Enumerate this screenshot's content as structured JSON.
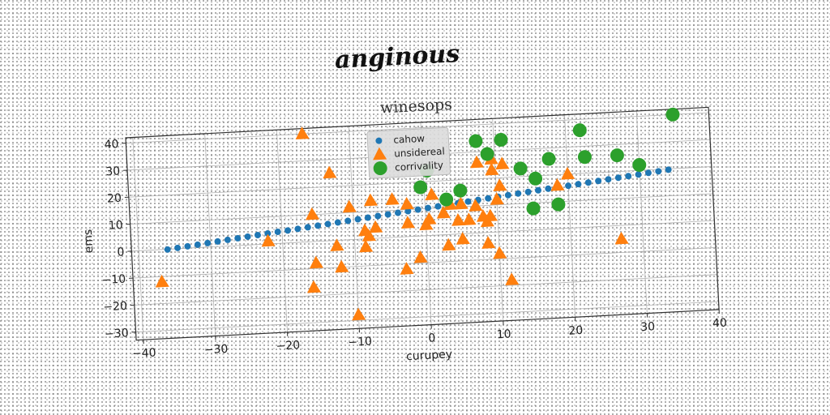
{
  "chart_data": {
    "type": "scatter",
    "suptitle": "anginous",
    "title": "winesops",
    "xlabel": "curupey",
    "ylabel": "ems",
    "xlim": [
      -41,
      40
    ],
    "ylim": [
      -33,
      42
    ],
    "xticks": [
      -40,
      -30,
      -20,
      -10,
      0,
      10,
      20,
      30,
      40
    ],
    "yticks": [
      -30,
      -20,
      -10,
      0,
      10,
      20,
      30,
      40
    ],
    "grid": true,
    "legend_position": "top-center",
    "series": [
      {
        "name": "cahow",
        "marker": "circle-small",
        "color": "#1f77b4",
        "x": [
          -36,
          -34.6,
          -33.2,
          -31.8,
          -30.4,
          -29,
          -27.6,
          -26.2,
          -24.8,
          -23.4,
          -22,
          -20.6,
          -19.2,
          -17.8,
          -16.4,
          -15,
          -13.6,
          -12.2,
          -10.8,
          -9.4,
          -8,
          -6.6,
          -5.2,
          -3.8,
          -2.4,
          -1,
          0.4,
          1.8,
          3.2,
          4.6,
          6,
          7.4,
          8.8,
          10.2,
          11.6,
          13,
          14.4,
          15.8,
          17.2,
          18.6,
          20,
          21.4,
          22.8,
          24.2,
          25.6,
          27,
          28.4,
          29.8,
          31.2,
          32.6,
          34
        ],
        "y": [
          -0.1,
          0.3,
          0.7,
          1.1,
          1.5,
          1.9,
          2.3,
          2.7,
          3.1,
          3.5,
          3.9,
          4.3,
          4.6,
          5,
          5.4,
          5.8,
          6.2,
          6.6,
          7,
          7.4,
          7.8,
          8.2,
          8.6,
          9,
          9.4,
          9.8,
          10.2,
          10.6,
          11,
          11.4,
          11.8,
          12.2,
          12.6,
          13,
          13.4,
          13.8,
          14.2,
          14.6,
          15,
          15.4,
          15.7,
          16.1,
          16.5,
          16.9,
          17.3,
          17.7,
          18.1,
          18.5,
          18.9,
          19.3,
          19.7
        ]
      },
      {
        "name": "unsidereal",
        "marker": "triangle",
        "color": "#ff7f0e",
        "x": [
          -37,
          -16.5,
          -15.5,
          -16,
          -15.7,
          -13,
          -12.5,
          -12,
          -10.5,
          -8.5,
          -8.5,
          -8,
          -7.5,
          -7,
          -4.5,
          -3,
          -2.5,
          -2.5,
          -1,
          0,
          0.5,
          1,
          2.5,
          3,
          3.5,
          4.5,
          5,
          5,
          6,
          7,
          7.5,
          8,
          8.5,
          8.5,
          9,
          9.5,
          9.5,
          10,
          10,
          10.5,
          11,
          11.5,
          18.5,
          20,
          27,
          -22,
          -10
        ],
        "y": [
          -12,
          40,
          -8,
          -17,
          10,
          25,
          -2,
          -10,
          12,
          3,
          -3,
          1,
          14,
          4,
          14,
          -12,
          12,
          5,
          -8,
          4,
          6,
          15,
          8,
          -4,
          11,
          5,
          -2,
          11,
          5,
          10,
          26,
          6,
          4,
          -4,
          6,
          27,
          23,
          -8,
          12,
          17,
          25,
          -18,
          16,
          20,
          -5,
          1,
          -28
        ]
      },
      {
        "name": "corrivality",
        "marker": "circle-large",
        "color": "#2ca02c",
        "x": [
          35,
          22,
          11,
          7.5,
          9,
          0.5,
          -0.5,
          3,
          5,
          13.5,
          17.5,
          22.5,
          27,
          30,
          15.5,
          15,
          18.5
        ],
        "y": [
          40,
          36,
          34,
          34,
          29,
          24,
          18,
          13,
          16,
          23,
          26,
          26,
          26,
          22,
          19,
          8,
          9
        ]
      }
    ]
  }
}
